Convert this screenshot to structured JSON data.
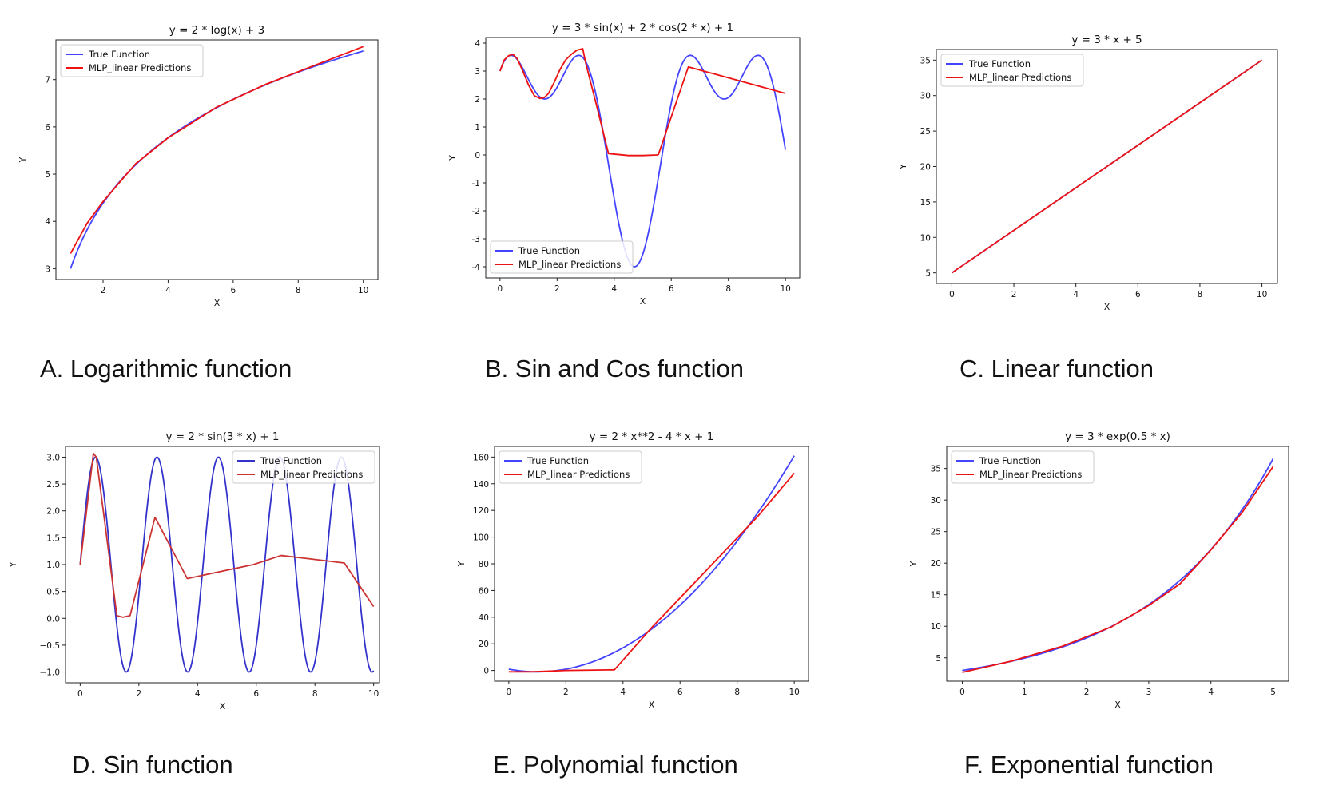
{
  "chart_data": [
    {
      "type": "line",
      "caption": "A. Logarithmic function",
      "title": "y = 2 * log(x) + 3",
      "xlabel": "X",
      "ylabel": "Y",
      "xlim": [
        0.55,
        10.45
      ],
      "ylim": [
        2.77,
        7.84
      ],
      "xticks": [
        2,
        4,
        6,
        8,
        10
      ],
      "yticks": [
        3,
        4,
        5,
        6,
        7
      ],
      "legend_position": "upper left",
      "series": [
        {
          "name": "True Function",
          "color": "#4444ff",
          "kind": "log",
          "x_range": [
            1,
            10
          ]
        },
        {
          "name": "MLP_linear Predictions",
          "color": "#ee1111",
          "x": [
            1,
            1.5,
            2,
            3,
            4,
            5.5,
            7,
            8.5,
            10
          ],
          "y": [
            3.32,
            3.95,
            4.42,
            5.22,
            5.77,
            6.42,
            6.9,
            7.3,
            7.7
          ]
        }
      ]
    },
    {
      "type": "line",
      "caption": "B. Sin and Cos function",
      "title": "y = 3 * sin(x) + 2 * cos(2 * x) + 1",
      "xlabel": "X",
      "ylabel": "Y",
      "xlim": [
        -0.5,
        10.5
      ],
      "ylim": [
        -4.4,
        4.2
      ],
      "xticks": [
        0,
        2,
        4,
        6,
        8,
        10
      ],
      "yticks": [
        -4,
        -3,
        -2,
        -1,
        0,
        1,
        2,
        3,
        4
      ],
      "legend_position": "lower left",
      "series": [
        {
          "name": "True Function",
          "color": "#4444ff",
          "kind": "sincos",
          "x_range": [
            0,
            10
          ]
        },
        {
          "name": "MLP_linear Predictions",
          "color": "#ee1111",
          "x": [
            0,
            0.15,
            0.3,
            0.45,
            0.6,
            0.8,
            1.0,
            1.2,
            1.4,
            1.55,
            1.7,
            1.9,
            2.1,
            2.3,
            2.5,
            2.7,
            2.9,
            3.0,
            3.4,
            3.8,
            4.5,
            5.0,
            5.5,
            5.55,
            6.6,
            10
          ],
          "y": [
            3.0,
            3.4,
            3.55,
            3.6,
            3.45,
            3.0,
            2.5,
            2.12,
            2.02,
            2.05,
            2.2,
            2.6,
            3.05,
            3.4,
            3.6,
            3.75,
            3.8,
            3.3,
            1.7,
            0.05,
            -0.02,
            -0.02,
            0.0,
            0.02,
            3.15,
            2.2
          ]
        }
      ]
    },
    {
      "type": "line",
      "caption": "C. Linear function",
      "title": "y = 3 * x + 5",
      "xlabel": "X",
      "ylabel": "Y",
      "xlim": [
        -0.5,
        10.5
      ],
      "ylim": [
        3.5,
        36.5
      ],
      "xticks": [
        0,
        2,
        4,
        6,
        8,
        10
      ],
      "yticks": [
        5,
        10,
        15,
        20,
        25,
        30,
        35
      ],
      "legend_position": "upper left",
      "series": [
        {
          "name": "True Function",
          "color": "#4444ff",
          "kind": "linear",
          "x_range": [
            0,
            10
          ]
        },
        {
          "name": "MLP_linear Predictions",
          "color": "#ee1111",
          "x": [
            0,
            10
          ],
          "y": [
            5,
            35
          ]
        }
      ]
    },
    {
      "type": "line",
      "caption": "D. Sin function",
      "title": "y = 2 * sin(3 * x) + 1",
      "xlabel": "X",
      "ylabel": "Y",
      "xlim": [
        -0.5,
        10.2
      ],
      "ylim": [
        -1.2,
        3.2
      ],
      "xticks": [
        0,
        2,
        4,
        6,
        8,
        10
      ],
      "yticks": [
        -1.0,
        -0.5,
        0.0,
        0.5,
        1.0,
        1.5,
        2.0,
        2.5,
        3.0
      ],
      "ytick_labels": [
        "−1.0",
        "−0.5",
        "0.0",
        "0.5",
        "1.0",
        "1.5",
        "2.0",
        "2.5",
        "3.0"
      ],
      "legend_position": "upper right",
      "series": [
        {
          "name": "True Function",
          "color": "#3333cc",
          "kind": "sin3",
          "x_range": [
            0,
            10
          ]
        },
        {
          "name": "MLP_linear Predictions",
          "color": "#cc3333",
          "x": [
            0,
            0.45,
            0.55,
            1.25,
            1.45,
            1.7,
            2.55,
            3.65,
            5.9,
            6.85,
            9.0,
            10
          ],
          "y": [
            1.0,
            3.07,
            3.0,
            0.05,
            0.02,
            0.05,
            1.88,
            0.74,
            1.0,
            1.17,
            1.03,
            0.22
          ]
        }
      ]
    },
    {
      "type": "line",
      "caption": "E. Polynomial function",
      "title": "y = 2 * x**2 - 4 * x + 1",
      "xlabel": "X",
      "ylabel": "Y",
      "xlim": [
        -0.5,
        10.5
      ],
      "ylim": [
        -8,
        168
      ],
      "xticks": [
        0,
        2,
        4,
        6,
        8,
        10
      ],
      "yticks": [
        0,
        20,
        40,
        60,
        80,
        100,
        120,
        140,
        160
      ],
      "legend_position": "upper left",
      "series": [
        {
          "name": "True Function",
          "color": "#4444ff",
          "kind": "poly",
          "x_range": [
            0,
            10
          ]
        },
        {
          "name": "MLP_linear Predictions",
          "color": "#ee1111",
          "x": [
            0,
            0.8,
            2,
            3.7,
            5.0,
            8.7,
            10
          ],
          "y": [
            -1,
            -1,
            0,
            0.5,
            32,
            115,
            148
          ]
        }
      ]
    },
    {
      "type": "line",
      "caption": "F. Exponential function",
      "title": "y = 3 * exp(0.5 * x)",
      "xlabel": "X",
      "ylabel": "Y",
      "xlim": [
        -0.25,
        5.25
      ],
      "ylim": [
        1.3,
        38.5
      ],
      "xticks": [
        0,
        1,
        2,
        3,
        4,
        5
      ],
      "yticks": [
        5,
        10,
        15,
        20,
        25,
        30,
        35
      ],
      "legend_position": "upper left",
      "series": [
        {
          "name": "True Function",
          "color": "#4444ff",
          "kind": "exp",
          "x_range": [
            0,
            5
          ]
        },
        {
          "name": "MLP_linear Predictions",
          "color": "#ee1111",
          "x": [
            0,
            0.8,
            1.6,
            2.4,
            3.0,
            3.5,
            4.0,
            4.5,
            5.0
          ],
          "y": [
            2.7,
            4.5,
            6.8,
            9.9,
            13.3,
            16.7,
            22.1,
            28.0,
            35.3
          ]
        }
      ]
    }
  ]
}
